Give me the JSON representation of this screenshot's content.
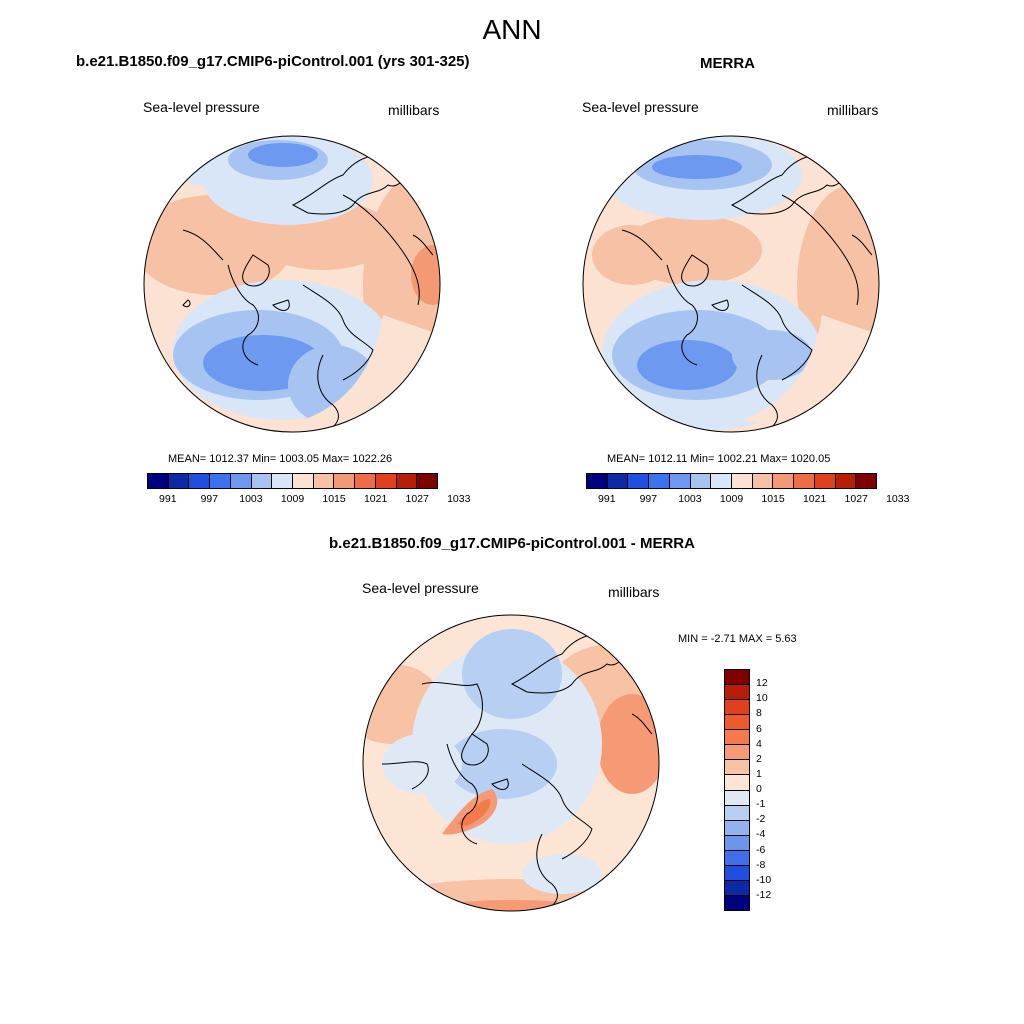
{
  "title": "ANN",
  "panels": [
    {
      "id": "model",
      "title": "b.e21.B1850.f09_g17.CMIP6-piControl.001 (yrs 301-325)",
      "left_label": "Sea-level pressure",
      "right_label": "millibars",
      "stats": "MEAN= 1012.37  Min= 1003.05  Max= 1022.26",
      "colorbar_ticks": [
        "991",
        "997",
        "1003",
        "1009",
        "1015",
        "1021",
        "1027",
        "1033"
      ]
    },
    {
      "id": "obs",
      "title": "MERRA",
      "left_label": "Sea-level pressure",
      "right_label": "millibars",
      "stats": "MEAN= 1012.11  Min= 1002.21  Max= 1020.05",
      "colorbar_ticks": [
        "991",
        "997",
        "1003",
        "1009",
        "1015",
        "1021",
        "1027",
        "1033"
      ]
    },
    {
      "id": "diff",
      "title": "b.e21.B1850.f09_g17.CMIP6-piControl.001 - MERRA",
      "left_label": "Sea-level pressure",
      "right_label": "millibars",
      "stats": "MIN =  -2.71 MAX =   5.63",
      "colorbar_ticks": [
        "12",
        "10",
        "8",
        "6",
        "4",
        "2",
        "1",
        "0",
        "-1",
        "-2",
        "-4",
        "-6",
        "-8",
        "-10",
        "-12"
      ]
    }
  ],
  "colors": {
    "abs_scale": [
      "#00007f",
      "#0a2aa6",
      "#1f4fe0",
      "#3a73f0",
      "#6d99f0",
      "#a6c3f2",
      "#d9e6f7",
      "#fbe2d2",
      "#f6c1a4",
      "#f39a74",
      "#ee6d45",
      "#e0411c",
      "#b81e06",
      "#7f0000"
    ],
    "diff_scale": [
      "#7f0000",
      "#b81e06",
      "#e0411c",
      "#ee5a2a",
      "#f37a4b",
      "#f59a74",
      "#f8c2a5",
      "#fde5d6",
      "#dfe9f6",
      "#b7cff2",
      "#93b3ee",
      "#6d95ec",
      "#3f6fe8",
      "#1f4fe0",
      "#0a2aa6",
      "#00007f"
    ],
    "ocean_base": "#fbe2d2",
    "coast": "#000000"
  }
}
